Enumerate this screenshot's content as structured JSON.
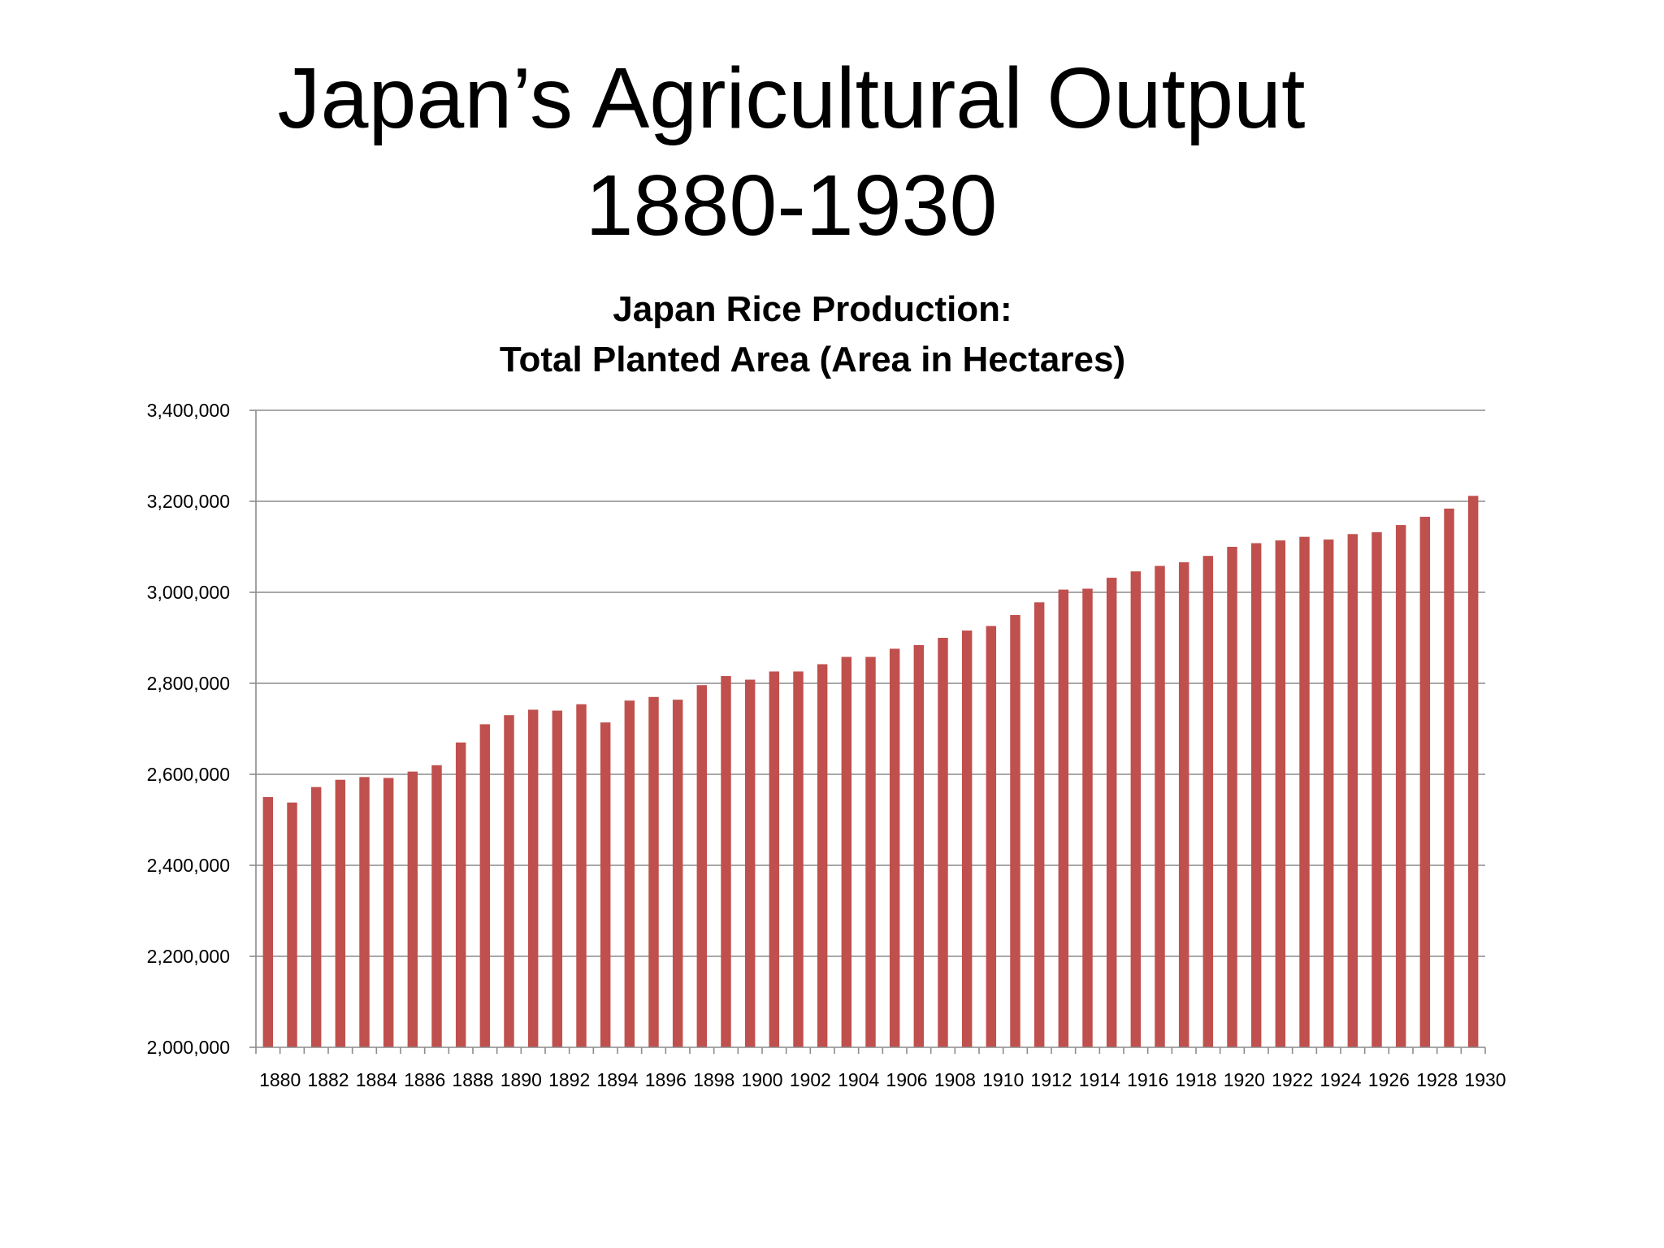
{
  "slide": {
    "title_line1": "Japan’s Agricultural Output",
    "title_line2": "1880-1930"
  },
  "colors": {
    "bar": "#C0504D",
    "gridline": "#8C8C8C",
    "axis": "#8C8C8C",
    "text": "#000000"
  },
  "chart_data": {
    "type": "bar",
    "title_line1": "Japan Rice Production:",
    "title_line2": "Total Planted Area (Area in Hectares)",
    "xlabel": "",
    "ylabel": "",
    "ylim": [
      2000000,
      3400000
    ],
    "yticks": [
      2000000,
      2200000,
      2400000,
      2600000,
      2800000,
      3000000,
      3200000,
      3400000
    ],
    "ytick_labels": [
      "2,000,000",
      "2,200,000",
      "2,400,000",
      "2,600,000",
      "2,800,000",
      "3,000,000",
      "3,200,000",
      "3,400,000"
    ],
    "grid": true,
    "legend": "none",
    "categories": [
      "1880",
      "1881",
      "1882",
      "1883",
      "1884",
      "1885",
      "1886",
      "1887",
      "1888",
      "1889",
      "1890",
      "1891",
      "1892",
      "1893",
      "1894",
      "1895",
      "1896",
      "1897",
      "1898",
      "1899",
      "1900",
      "1901",
      "1902",
      "1903",
      "1904",
      "1905",
      "1906",
      "1907",
      "1908",
      "1909",
      "1910",
      "1911",
      "1912",
      "1913",
      "1914",
      "1915",
      "1916",
      "1917",
      "1918",
      "1919",
      "1920",
      "1921",
      "1922",
      "1923",
      "1924",
      "1925",
      "1926",
      "1927",
      "1928",
      "1929",
      "1930"
    ],
    "xtick_labels_shown": [
      "1880",
      "1882",
      "1884",
      "1886",
      "1888",
      "1890",
      "1892",
      "1894",
      "1896",
      "1898",
      "1900",
      "1902",
      "1904",
      "1906",
      "1908",
      "1910",
      "1912",
      "1914",
      "1916",
      "1918",
      "1920",
      "1922",
      "1924",
      "1926",
      "1928",
      "1930"
    ],
    "values": [
      2550000,
      2538000,
      2572000,
      2588000,
      2594000,
      2592000,
      2606000,
      2620000,
      2670000,
      2710000,
      2730000,
      2742000,
      2740000,
      2754000,
      2714000,
      2762000,
      2770000,
      2764000,
      2796000,
      2816000,
      2808000,
      2826000,
      2826000,
      2842000,
      2858000,
      2858000,
      2876000,
      2884000,
      2900000,
      2916000,
      2926000,
      2950000,
      2978000,
      3006000,
      3008000,
      3032000,
      3046000,
      3058000,
      3066000,
      3080000,
      3100000,
      3108000,
      3114000,
      3122000,
      3116000,
      3128000,
      3132000,
      3148000,
      3166000,
      3184000,
      3212000
    ]
  }
}
